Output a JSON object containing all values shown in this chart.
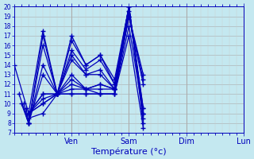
{
  "title": "Température (°c)",
  "background_color": "#c4e8f0",
  "plot_bg_color": "#c4e8f0",
  "grid_major_color": "#aaaaaa",
  "grid_minor_color": "#cccccc",
  "line_color": "#0000bb",
  "marker": "+",
  "markersize": 4,
  "linewidth": 0.9,
  "ylim": [
    7,
    20
  ],
  "yticks": [
    7,
    8,
    9,
    10,
    11,
    12,
    13,
    14,
    15,
    16,
    17,
    18,
    19,
    20
  ],
  "xlim": [
    0,
    96
  ],
  "day_ticks": [
    24,
    48,
    72,
    96
  ],
  "day_labels": [
    "Ven",
    "Sam",
    "Dim",
    "Lun"
  ],
  "series": [
    {
      "start": 0,
      "points": [
        [
          0,
          14
        ],
        [
          6,
          9
        ],
        [
          12,
          17.5
        ],
        [
          18,
          11
        ],
        [
          24,
          17
        ],
        [
          30,
          14
        ],
        [
          36,
          15
        ],
        [
          42,
          12
        ],
        [
          48,
          20
        ],
        [
          54,
          9
        ]
      ]
    },
    {
      "start": 2,
      "points": [
        [
          2,
          11
        ],
        [
          6,
          8
        ],
        [
          12,
          17
        ],
        [
          18,
          11
        ],
        [
          24,
          16.5
        ],
        [
          30,
          14
        ],
        [
          36,
          15
        ],
        [
          42,
          12.5
        ],
        [
          48,
          20
        ],
        [
          54,
          8
        ]
      ]
    },
    {
      "start": 3,
      "points": [
        [
          3,
          10
        ],
        [
          6,
          8
        ],
        [
          12,
          16
        ],
        [
          18,
          11
        ],
        [
          24,
          15.5
        ],
        [
          30,
          13.5
        ],
        [
          36,
          14.5
        ],
        [
          42,
          12
        ],
        [
          48,
          20
        ],
        [
          54,
          8.5
        ]
      ]
    },
    {
      "start": 4,
      "points": [
        [
          4,
          10
        ],
        [
          6,
          8
        ],
        [
          12,
          14
        ],
        [
          18,
          11
        ],
        [
          24,
          15
        ],
        [
          30,
          13
        ],
        [
          36,
          13.5
        ],
        [
          42,
          11.5
        ],
        [
          48,
          20
        ],
        [
          54,
          9
        ]
      ]
    },
    {
      "start": 5,
      "points": [
        [
          5,
          9.5
        ],
        [
          6,
          8
        ],
        [
          12,
          13
        ],
        [
          18,
          11
        ],
        [
          24,
          14.5
        ],
        [
          30,
          13
        ],
        [
          36,
          13
        ],
        [
          42,
          11.5
        ],
        [
          48,
          20
        ],
        [
          54,
          9.5
        ]
      ]
    },
    {
      "start": 6,
      "points": [
        [
          6,
          9
        ],
        [
          12,
          11
        ],
        [
          18,
          11
        ],
        [
          24,
          13
        ],
        [
          30,
          11.5
        ],
        [
          36,
          12
        ],
        [
          42,
          11.5
        ],
        [
          48,
          19.5
        ],
        [
          54,
          9.5
        ]
      ]
    },
    {
      "start": 6,
      "points": [
        [
          6,
          9
        ],
        [
          12,
          11
        ],
        [
          18,
          11
        ],
        [
          24,
          12.5
        ],
        [
          30,
          11.5
        ],
        [
          36,
          12
        ],
        [
          42,
          11.5
        ],
        [
          48,
          19
        ],
        [
          54,
          12
        ]
      ]
    },
    {
      "start": 6,
      "points": [
        [
          6,
          9
        ],
        [
          12,
          10.5
        ],
        [
          18,
          11
        ],
        [
          24,
          12
        ],
        [
          30,
          11.5
        ],
        [
          36,
          11.5
        ],
        [
          42,
          11.5
        ],
        [
          48,
          19
        ],
        [
          54,
          12.5
        ]
      ]
    },
    {
      "start": 6,
      "points": [
        [
          6,
          9
        ],
        [
          12,
          10
        ],
        [
          18,
          11
        ],
        [
          24,
          11.5
        ],
        [
          30,
          11.5
        ],
        [
          36,
          11
        ],
        [
          42,
          11
        ],
        [
          48,
          19
        ],
        [
          54,
          13
        ]
      ]
    },
    {
      "start": 6,
      "points": [
        [
          6,
          9
        ],
        [
          12,
          10
        ],
        [
          18,
          11
        ],
        [
          24,
          11
        ],
        [
          30,
          11
        ],
        [
          36,
          11
        ],
        [
          42,
          11
        ],
        [
          48,
          18
        ],
        [
          54,
          9
        ]
      ]
    },
    {
      "start": 6,
      "points": [
        [
          6,
          8.5
        ],
        [
          12,
          9
        ],
        [
          18,
          11
        ],
        [
          24,
          11
        ],
        [
          30,
          11
        ],
        [
          36,
          11
        ],
        [
          42,
          11
        ],
        [
          48,
          17
        ],
        [
          54,
          7.5
        ]
      ]
    }
  ]
}
